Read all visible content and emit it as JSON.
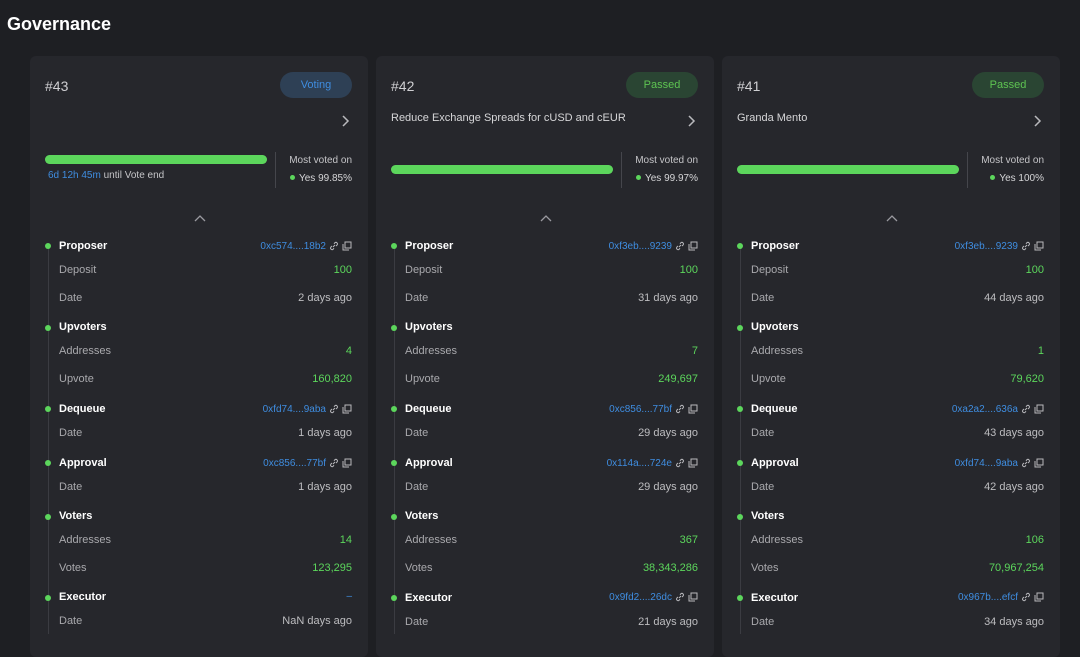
{
  "page": {
    "title": "Governance"
  },
  "cards": [
    {
      "id": "#43",
      "status": "Voting",
      "title": "",
      "progress_percent": 100,
      "time_left_value": "6d 12h 45m",
      "time_left_suffix": "until Vote end",
      "most_voted_label": "Most voted on",
      "most_voted_value": "Yes 99.85%",
      "proposer": {
        "label": "Proposer",
        "address": "0xc574....18b2",
        "deposit_label": "Deposit",
        "deposit": "100",
        "date_label": "Date",
        "date": "2 days ago"
      },
      "upvoters": {
        "label": "Upvoters",
        "addresses_label": "Addresses",
        "addresses": "4",
        "upvote_label": "Upvote",
        "upvote": "160,820"
      },
      "dequeue": {
        "label": "Dequeue",
        "address": "0xfd74....9aba",
        "date_label": "Date",
        "date": "1 days ago"
      },
      "approval": {
        "label": "Approval",
        "address": "0xc856....77bf",
        "date_label": "Date",
        "date": "1 days ago"
      },
      "voters": {
        "label": "Voters",
        "addresses_label": "Addresses",
        "addresses": "14",
        "votes_label": "Votes",
        "votes": "123,295"
      },
      "executor": {
        "label": "Executor",
        "address": "–",
        "date_label": "Date",
        "date": "NaN days ago"
      }
    },
    {
      "id": "#42",
      "status": "Passed",
      "title": "Reduce Exchange Spreads for cUSD and cEUR",
      "progress_percent": 100,
      "time_left_value": "",
      "time_left_suffix": "",
      "most_voted_label": "Most voted on",
      "most_voted_value": "Yes 99.97%",
      "proposer": {
        "label": "Proposer",
        "address": "0xf3eb....9239",
        "deposit_label": "Deposit",
        "deposit": "100",
        "date_label": "Date",
        "date": "31 days ago"
      },
      "upvoters": {
        "label": "Upvoters",
        "addresses_label": "Addresses",
        "addresses": "7",
        "upvote_label": "Upvote",
        "upvote": "249,697"
      },
      "dequeue": {
        "label": "Dequeue",
        "address": "0xc856....77bf",
        "date_label": "Date",
        "date": "29 days ago"
      },
      "approval": {
        "label": "Approval",
        "address": "0x114a....724e",
        "date_label": "Date",
        "date": "29 days ago"
      },
      "voters": {
        "label": "Voters",
        "addresses_label": "Addresses",
        "addresses": "367",
        "votes_label": "Votes",
        "votes": "38,343,286"
      },
      "executor": {
        "label": "Executor",
        "address": "0x9fd2....26dc",
        "date_label": "Date",
        "date": "21 days ago"
      }
    },
    {
      "id": "#41",
      "status": "Passed",
      "title": "Granda Mento",
      "progress_percent": 100,
      "time_left_value": "",
      "time_left_suffix": "",
      "most_voted_label": "Most voted on",
      "most_voted_value": "Yes 100%",
      "proposer": {
        "label": "Proposer",
        "address": "0xf3eb....9239",
        "deposit_label": "Deposit",
        "deposit": "100",
        "date_label": "Date",
        "date": "44 days ago"
      },
      "upvoters": {
        "label": "Upvoters",
        "addresses_label": "Addresses",
        "addresses": "1",
        "upvote_label": "Upvote",
        "upvote": "79,620"
      },
      "dequeue": {
        "label": "Dequeue",
        "address": "0xa2a2....636a",
        "date_label": "Date",
        "date": "43 days ago"
      },
      "approval": {
        "label": "Approval",
        "address": "0xfd74....9aba",
        "date_label": "Date",
        "date": "42 days ago"
      },
      "voters": {
        "label": "Voters",
        "addresses_label": "Addresses",
        "addresses": "106",
        "votes_label": "Votes",
        "votes": "70,967,254"
      },
      "executor": {
        "label": "Executor",
        "address": "0x967b....efcf",
        "date_label": "Date",
        "date": "34 days ago"
      }
    }
  ],
  "colors": {
    "background": "#1e1f23",
    "card": "#26272c",
    "accent_green": "#5cd65c",
    "accent_blue": "#3f8de0"
  },
  "icons": {
    "link": "link-icon",
    "copy": "copy-icon",
    "expand": "chevron-right-icon",
    "collapse": "chevron-up-icon"
  }
}
